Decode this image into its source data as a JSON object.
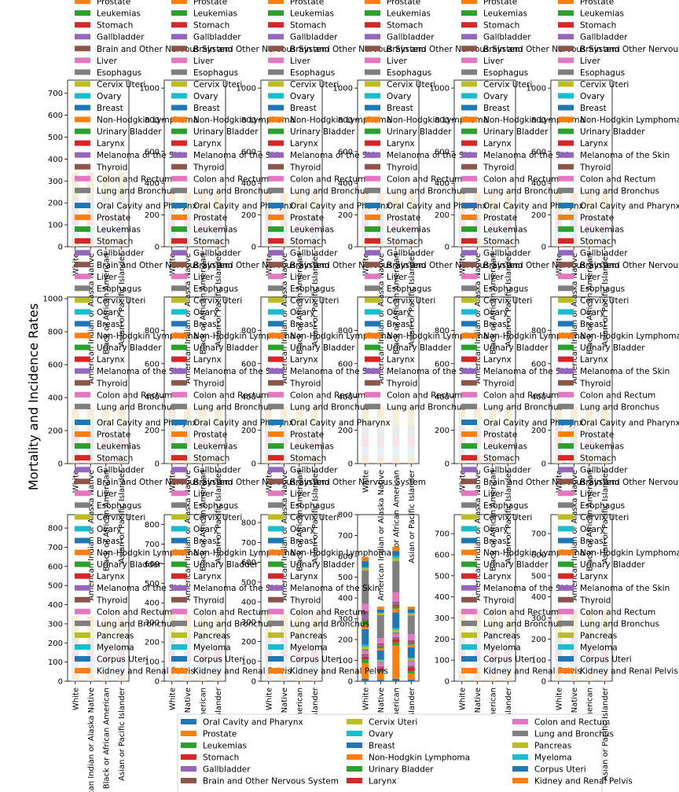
{
  "figure": {
    "ylabel": "Mortality and Incidence Rates"
  },
  "legend_labels": [
    "Oral Cavity and Pharynx",
    "Prostate",
    "Leukemias",
    "Stomach",
    "Gallbladder",
    "Brain and Other Nervous System",
    "Liver",
    "Esophagus",
    "Cervix Uteri",
    "Ovary",
    "Breast",
    "Non-Hodgkin Lymphoma",
    "Urinary Bladder",
    "Larynx",
    "Melanoma of the Skin",
    "Thyroid",
    "Colon and Rectum",
    "Lung and Bronchus",
    "Pancreas",
    "Myeloma",
    "Corpus Uteri",
    "Kidney and Renal Pelvis"
  ],
  "palette": [
    "#1f77b4",
    "#ff7f0e",
    "#2ca02c",
    "#d62728",
    "#9467bd",
    "#8c564b",
    "#e377c2",
    "#7f7f7f",
    "#bcbd22",
    "#17becf"
  ],
  "categories": [
    "White",
    "American Indian or Alaska Native",
    "Black or African American",
    "Asian or Pacific Islander"
  ],
  "chart_data": {
    "type": "bar",
    "stacked": true,
    "layout": "grid of small multiples (4 rows x 6 columns), overlapping legends",
    "categories": [
      "White",
      "American Indian or Alaska Native",
      "Black or African American",
      "Asian or Pacific Islander"
    ],
    "ylabel": "Mortality and Incidence Rates",
    "legend_placement": "upper-left of each panel; one shared legend below",
    "panels": [
      {
        "row": 0,
        "col": 0,
        "ylim": [
          0,
          760
        ],
        "yticks": [
          0,
          100,
          200,
          300,
          400,
          500,
          600,
          700
        ]
      },
      {
        "row": 0,
        "col": 1,
        "ylim": [
          0,
          1050
        ],
        "yticks": [
          0,
          200,
          400,
          600,
          800,
          1000
        ]
      },
      {
        "row": 0,
        "col": 2,
        "ylim": [
          0,
          1050
        ],
        "yticks": [
          0,
          200,
          400,
          600,
          800,
          1000
        ]
      },
      {
        "row": 0,
        "col": 3,
        "ylim": [
          0,
          1050
        ],
        "yticks": [
          0,
          200,
          400,
          600,
          800,
          1000
        ]
      },
      {
        "row": 0,
        "col": 4,
        "ylim": [
          0,
          1050
        ],
        "yticks": [
          0,
          200,
          400,
          600,
          800,
          1000
        ]
      },
      {
        "row": 0,
        "col": 5,
        "ylim": [
          0,
          1050
        ],
        "yticks": [
          0,
          200,
          400,
          600,
          800,
          1000
        ]
      },
      {
        "row": 1,
        "col": 0,
        "ylim": [
          0,
          1010
        ],
        "yticks": [
          0,
          200,
          400,
          600,
          800,
          1000
        ]
      },
      {
        "row": 1,
        "col": 1,
        "ylim": [
          0,
          1000
        ],
        "yticks": [
          0,
          200,
          400,
          600,
          800
        ]
      },
      {
        "row": 1,
        "col": 2,
        "ylim": [
          0,
          1000
        ],
        "yticks": [
          0,
          200,
          400,
          600,
          800
        ]
      },
      {
        "row": 1,
        "col": 3,
        "ylim": [
          0,
          1000
        ],
        "yticks": [
          0,
          200,
          400,
          600,
          800
        ]
      },
      {
        "row": 1,
        "col": 4,
        "ylim": [
          0,
          1000
        ],
        "yticks": [
          0,
          200,
          400,
          600,
          800
        ]
      },
      {
        "row": 1,
        "col": 5,
        "ylim": [
          0,
          1000
        ],
        "yticks": [
          0,
          200,
          400,
          600,
          800
        ]
      },
      {
        "row": 2,
        "col": 0,
        "ylim": [
          0,
          870
        ],
        "yticks": [
          0,
          100,
          200,
          300,
          400,
          500,
          600,
          700,
          800
        ]
      },
      {
        "row": 2,
        "col": 1,
        "ylim": [
          0,
          850
        ],
        "yticks": [
          0,
          100,
          200,
          300,
          400,
          500,
          600,
          700,
          800
        ]
      },
      {
        "row": 2,
        "col": 2,
        "ylim": [
          0,
          840
        ],
        "yticks": [
          0,
          100,
          200,
          300,
          400,
          500,
          600,
          700,
          800
        ]
      },
      {
        "row": 2,
        "col": 3,
        "ylim": [
          0,
          800
        ],
        "yticks": [
          0,
          100,
          200,
          300,
          400,
          500,
          600,
          700,
          800
        ],
        "series_values": {
          "White": [
            12,
            75,
            18,
            12,
            6,
            7,
            15,
            8,
            12,
            10,
            75,
            20,
            22,
            5,
            25,
            15,
            35,
            160,
            10,
            7,
            28,
            20
          ],
          "American Indian or Alaska Native": [
            8,
            35,
            8,
            10,
            5,
            4,
            18,
            5,
            6,
            4,
            45,
            10,
            8,
            3,
            5,
            8,
            25,
            110,
            8,
            4,
            15,
            14
          ],
          "Black or African American": [
            12,
            160,
            14,
            16,
            5,
            5,
            15,
            8,
            12,
            8,
            75,
            18,
            12,
            6,
            10,
            6,
            45,
            150,
            14,
            10,
            25,
            20
          ],
          "Asian or Pacific Islander": [
            8,
            30,
            10,
            18,
            4,
            4,
            20,
            5,
            8,
            6,
            50,
            12,
            6,
            2,
            3,
            10,
            30,
            90,
            8,
            4,
            18,
            12
          ]
        }
      },
      {
        "row": 2,
        "col": 4,
        "ylim": [
          0,
          790
        ],
        "yticks": [
          0,
          100,
          200,
          300,
          400,
          500,
          600,
          700
        ]
      },
      {
        "row": 2,
        "col": 5,
        "ylim": [
          0,
          790
        ],
        "yticks": [
          0,
          100,
          200,
          300,
          400,
          500,
          600,
          700
        ]
      }
    ],
    "series": [
      {
        "name": "Oral Cavity and Pharynx"
      },
      {
        "name": "Prostate"
      },
      {
        "name": "Leukemias"
      },
      {
        "name": "Stomach"
      },
      {
        "name": "Gallbladder"
      },
      {
        "name": "Brain and Other Nervous System"
      },
      {
        "name": "Liver"
      },
      {
        "name": "Esophagus"
      },
      {
        "name": "Cervix Uteri"
      },
      {
        "name": "Ovary"
      },
      {
        "name": "Breast"
      },
      {
        "name": "Non-Hodgkin Lymphoma"
      },
      {
        "name": "Urinary Bladder"
      },
      {
        "name": "Larynx"
      },
      {
        "name": "Melanoma of the Skin"
      },
      {
        "name": "Thyroid"
      },
      {
        "name": "Colon and Rectum"
      },
      {
        "name": "Lung and Bronchus"
      },
      {
        "name": "Pancreas"
      },
      {
        "name": "Myeloma"
      },
      {
        "name": "Corpus Uteri"
      },
      {
        "name": "Kidney and Renal Pelvis"
      }
    ]
  }
}
